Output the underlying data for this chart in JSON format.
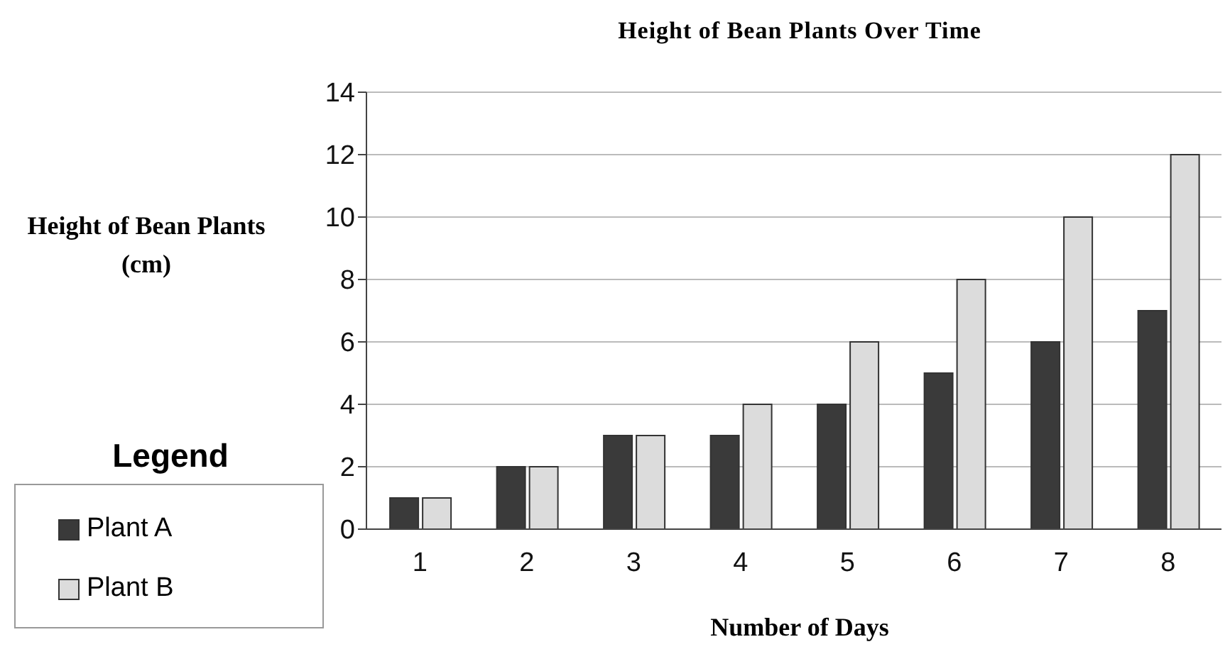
{
  "chart_data": {
    "type": "bar",
    "title": "Height of Bean Plants Over Time",
    "xlabel": "Number of Days",
    "ylabel": "Height of Bean Plants (cm)",
    "legend_title": "Legend",
    "categories": [
      "1",
      "2",
      "3",
      "4",
      "5",
      "6",
      "7",
      "8"
    ],
    "series": [
      {
        "name": "Plant A",
        "color": "#3a3a3a",
        "values": [
          1,
          2,
          3,
          3,
          4,
          5,
          6,
          7
        ]
      },
      {
        "name": "Plant B",
        "color": "#dcdcdc",
        "values": [
          1,
          2,
          3,
          4,
          6,
          8,
          10,
          12
        ]
      }
    ],
    "ylim": [
      0,
      14
    ],
    "yticks": [
      0,
      2,
      4,
      6,
      8,
      10,
      12,
      14
    ],
    "grid": "y",
    "legend": "bottom left"
  }
}
